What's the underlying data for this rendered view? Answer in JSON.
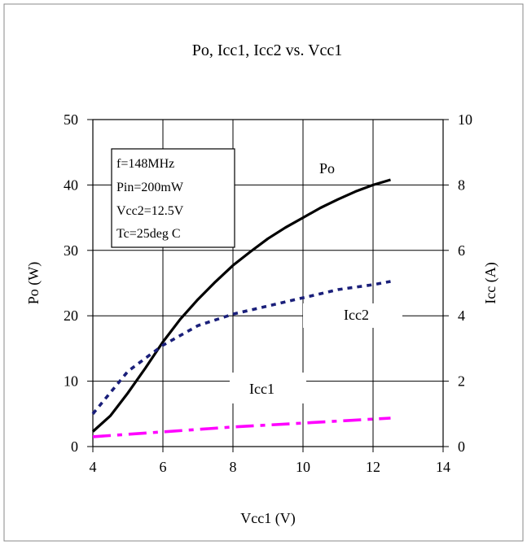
{
  "chart_data": {
    "type": "line",
    "title": "Po, Icc1, Icc2 vs. Vcc1",
    "xlabel": "Vcc1 (V)",
    "ylabel_left": "Po (W)",
    "ylabel_right": "Icc (A)",
    "xlim": [
      4,
      14
    ],
    "xticks": [
      4,
      6,
      8,
      10,
      12,
      14
    ],
    "ylim_left": [
      0,
      50
    ],
    "yticks_left": [
      0,
      10,
      20,
      30,
      40,
      50
    ],
    "ylim_right": [
      0,
      10
    ],
    "yticks_right": [
      0,
      2,
      4,
      6,
      8,
      10
    ],
    "grid": true,
    "conditions_box": [
      "f=148MHz",
      "Pin=200mW",
      "Vcc2=12.5V",
      "Tc=25deg C"
    ],
    "series": [
      {
        "name": "Po",
        "axis": "left",
        "color": "#000000",
        "style": "solid",
        "x": [
          4,
          4.5,
          5,
          5.5,
          6,
          6.5,
          7,
          7.5,
          8,
          8.5,
          9,
          9.5,
          10,
          10.5,
          11,
          11.5,
          12,
          12.5
        ],
        "y": [
          2.3,
          4.7,
          8.2,
          12,
          16,
          19.5,
          22.5,
          25.2,
          27.7,
          29.8,
          31.8,
          33.5,
          35,
          36.5,
          37.8,
          39,
          40,
          40.8
        ]
      },
      {
        "name": "Icc2",
        "axis": "right",
        "color": "#1a1f7a",
        "style": "dotted",
        "x": [
          4,
          5,
          6,
          7,
          8,
          9,
          10,
          11,
          12,
          12.5
        ],
        "y": [
          1.0,
          2.3,
          3.1,
          3.7,
          4.05,
          4.3,
          4.55,
          4.8,
          4.95,
          5.05
        ]
      },
      {
        "name": "Icc1",
        "axis": "right",
        "color": "#ff00ff",
        "style": "dashdot",
        "x": [
          4,
          6,
          8,
          10,
          12,
          12.5
        ],
        "y": [
          0.3,
          0.45,
          0.6,
          0.72,
          0.84,
          0.87
        ]
      }
    ]
  }
}
